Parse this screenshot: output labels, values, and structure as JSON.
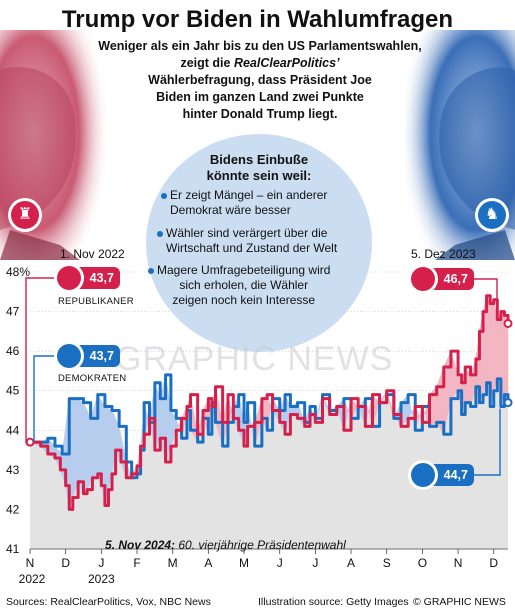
{
  "header": {
    "title": "Trump vor Biden in Wahlumfragen",
    "subtitle_line1": "Weniger als ein Jahr bis zu den US Parlamentswahlen,",
    "subtitle_line2_pre": "zeigt die ",
    "subtitle_line2_em": "RealClearPolitics’",
    "subtitle_line3": "Wählerbefragung, dass Präsident Joe",
    "subtitle_line4": "Biden im ganzen Land zwei Punkte",
    "subtitle_line5": "hinter Donald Trump liegt."
  },
  "bubble": {
    "title_line1": "Bidens Einbuße",
    "title_line2": "könnte sein weil:",
    "reasons": [
      {
        "line1": "Er zeigt Mängel – ein anderer",
        "line2": "Demokrat wäre besser",
        "line3": ""
      },
      {
        "line1": "Wähler sind verärgert über die",
        "line2": "Wirtschaft und Zustand der Welt",
        "line3": ""
      },
      {
        "line1": "Magere Umfragebeteiligung wird",
        "line2": "sich erholen, die Wähler",
        "line3": "zeigen noch kein Interesse"
      }
    ]
  },
  "annotations": {
    "start_date": "1. Nov 2022",
    "end_date": "5. Dez 2023",
    "rep_start": "43,7",
    "dem_start": "43,7",
    "rep_end": "46,7",
    "dem_end": "44,7",
    "rep_label": "REPUBLIKANER",
    "dem_label": "DEMOKRATEN",
    "election_bold": "5. Nov 2024:",
    "election_text": " 60. vierjährige Präsidentenwahl"
  },
  "watermark": "GRAPHIC NEWS",
  "footer": {
    "sources": "Sources: RealClearPolitics, Vox, NBC News",
    "illustration": "Illustration source: Getty Images",
    "brand": "© GRAPHIC NEWS"
  },
  "colors": {
    "republican": "#d4204a",
    "democrat": "#1b6fc2",
    "bubble": "#c7daf0",
    "plot_fill": "#e3e3e3"
  },
  "icons": [
    "elephant-icon",
    "donkey-icon"
  ],
  "chart_data": {
    "type": "line",
    "title": "",
    "ylabel": "",
    "ylim": [
      41,
      48
    ],
    "yticks": [
      41,
      42,
      43,
      44,
      45,
      46,
      47,
      48
    ],
    "ytick_labels": [
      "41",
      "42",
      "43",
      "44",
      "45",
      "46",
      "47",
      "48%"
    ],
    "x_ticks": [
      "N",
      "D",
      "J",
      "F",
      "M",
      "A",
      "M",
      "J",
      "J",
      "A",
      "S",
      "O",
      "N",
      "D"
    ],
    "x_year_labels": [
      {
        "tick": 0,
        "text": "2022"
      },
      {
        "tick": 2,
        "text": "2023"
      }
    ],
    "x_range_months": [
      0,
      13.4
    ],
    "series": [
      {
        "name": "REPUBLIKANER",
        "x": [
          0.0,
          0.3,
          0.5,
          0.7,
          0.85,
          1.0,
          1.1,
          1.2,
          1.35,
          1.5,
          1.6,
          1.75,
          1.9,
          2.0,
          2.1,
          2.2,
          2.3,
          2.4,
          2.55,
          2.7,
          2.85,
          3.0,
          3.1,
          3.2,
          3.35,
          3.5,
          3.65,
          3.8,
          3.95,
          4.1,
          4.25,
          4.4,
          4.5,
          4.7,
          4.85,
          5.0,
          5.1,
          5.2,
          5.4,
          5.55,
          5.7,
          5.85,
          6.0,
          6.1,
          6.3,
          6.5,
          6.65,
          6.8,
          7.0,
          7.15,
          7.3,
          7.5,
          7.7,
          7.85,
          8.0,
          8.2,
          8.4,
          8.6,
          8.8,
          9.0,
          9.2,
          9.4,
          9.6,
          9.8,
          10.0,
          10.2,
          10.4,
          10.6,
          10.8,
          11.0,
          11.2,
          11.4,
          11.6,
          11.8,
          12.0,
          12.1,
          12.2,
          12.35,
          12.5,
          12.6,
          12.7,
          12.8,
          12.9,
          13.0,
          13.1,
          13.2,
          13.3,
          13.4
        ],
        "y": [
          43.7,
          43.6,
          43.4,
          43.3,
          43.0,
          42.6,
          42.0,
          42.3,
          42.7,
          42.4,
          42.5,
          42.8,
          42.9,
          42.6,
          42.1,
          42.5,
          42.9,
          43.5,
          43.2,
          42.8,
          42.9,
          43.1,
          43.6,
          43.9,
          44.3,
          43.5,
          43.8,
          43.2,
          43.6,
          44.0,
          44.3,
          44.6,
          44.9,
          43.9,
          44.5,
          44.8,
          44.6,
          45.1,
          44.2,
          44.9,
          44.3,
          44.0,
          43.6,
          44.1,
          44.2,
          44.8,
          44.9,
          44.5,
          44.2,
          43.9,
          44.4,
          44.3,
          44.1,
          44.4,
          44.2,
          44.8,
          44.4,
          44.6,
          44.0,
          44.8,
          44.6,
          44.1,
          44.9,
          44.7,
          45.0,
          44.4,
          44.1,
          44.3,
          44.6,
          44.2,
          44.9,
          45.1,
          45.6,
          46.0,
          45.4,
          45.2,
          45.6,
          45.4,
          45.8,
          46.5,
          47.0,
          47.4,
          47.2,
          47.3,
          46.8,
          47.0,
          46.9,
          46.7
        ]
      },
      {
        "name": "DEMOKRATEN",
        "x": [
          0.0,
          0.3,
          0.5,
          0.7,
          0.9,
          1.1,
          1.3,
          1.5,
          1.7,
          1.9,
          2.1,
          2.3,
          2.5,
          2.7,
          2.85,
          3.0,
          3.1,
          3.2,
          3.35,
          3.5,
          3.65,
          3.8,
          3.95,
          4.1,
          4.25,
          4.4,
          4.5,
          4.7,
          4.85,
          5.0,
          5.1,
          5.2,
          5.4,
          5.55,
          5.7,
          5.85,
          6.0,
          6.1,
          6.3,
          6.5,
          6.65,
          6.8,
          7.0,
          7.15,
          7.3,
          7.5,
          7.7,
          7.85,
          8.0,
          8.2,
          8.4,
          8.6,
          8.8,
          9.0,
          9.2,
          9.4,
          9.6,
          9.8,
          10.0,
          10.2,
          10.4,
          10.6,
          10.8,
          11.0,
          11.2,
          11.4,
          11.6,
          11.8,
          12.0,
          12.1,
          12.2,
          12.35,
          12.5,
          12.6,
          12.7,
          12.8,
          12.9,
          13.0,
          13.1,
          13.2,
          13.3,
          13.4
        ],
        "y": [
          43.7,
          43.7,
          43.8,
          43.6,
          43.4,
          44.8,
          44.8,
          44.7,
          44.3,
          44.9,
          44.6,
          44.5,
          44.1,
          43.2,
          42.8,
          42.9,
          43.5,
          44.7,
          44.2,
          45.2,
          44.8,
          45.4,
          44.5,
          44.3,
          43.8,
          44.5,
          44.0,
          43.7,
          44.3,
          43.9,
          44.7,
          44.2,
          43.6,
          44.2,
          44.6,
          44.9,
          44.2,
          44.7,
          43.6,
          44.3,
          44.0,
          44.8,
          44.5,
          44.9,
          44.6,
          44.7,
          44.2,
          44.6,
          44.3,
          44.9,
          44.5,
          44.6,
          44.8,
          44.3,
          44.6,
          44.8,
          44.1,
          44.7,
          44.9,
          44.3,
          44.7,
          44.9,
          44.0,
          44.6,
          44.1,
          44.2,
          43.9,
          44.8,
          45.0,
          44.4,
          44.7,
          44.6,
          45.1,
          44.7,
          44.9,
          45.2,
          44.6,
          45.0,
          45.3,
          44.6,
          44.9,
          44.7
        ]
      }
    ]
  }
}
